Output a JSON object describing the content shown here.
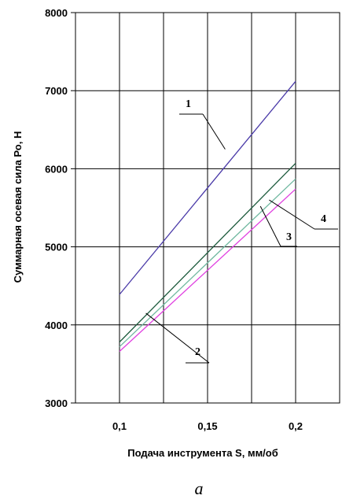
{
  "chart_data": {
    "type": "line",
    "ylabel": "Суммарная осевая  сила Ро, Н",
    "xlabel": "Подача инструмента S, мм/об",
    "caption": "a",
    "x_ticks": [
      "0,1",
      "0,15",
      "0,2"
    ],
    "x_tick_values": [
      0.1,
      0.15,
      0.2
    ],
    "y_ticks": [
      "3000",
      "4000",
      "5000",
      "6000",
      "7000",
      "8000"
    ],
    "y_tick_values": [
      3000,
      4000,
      5000,
      6000,
      7000,
      8000
    ],
    "xlim": [
      0.075,
      0.225
    ],
    "ylim": [
      3000,
      8000
    ],
    "grid": true,
    "series": [
      {
        "name": "1",
        "color": "#4a3aa8",
        "x": [
          0.1,
          0.2
        ],
        "y": [
          4390,
          7120
        ]
      },
      {
        "name": "2",
        "color": "#1c5a3c",
        "x": [
          0.1,
          0.2
        ],
        "y": [
          3780,
          6070
        ]
      },
      {
        "name": "3",
        "color": "#70b8a0",
        "x": [
          0.1,
          0.2
        ],
        "y": [
          3720,
          5870
        ]
      },
      {
        "name": "4",
        "color": "#e040e0",
        "x": [
          0.1,
          0.2
        ],
        "y": [
          3660,
          5740
        ]
      }
    ],
    "annotations": [
      {
        "label": "1",
        "series": "1",
        "anchor_x": 0.16,
        "anchor_y": 6250
      },
      {
        "label": "2",
        "series": "2",
        "anchor_x": 0.115,
        "anchor_y": 4150
      },
      {
        "label": "3",
        "series": "3",
        "anchor_x": 0.18,
        "anchor_y": 5520
      },
      {
        "label": "4",
        "series": "4",
        "anchor_x": 0.185,
        "anchor_y": 5600
      }
    ]
  }
}
